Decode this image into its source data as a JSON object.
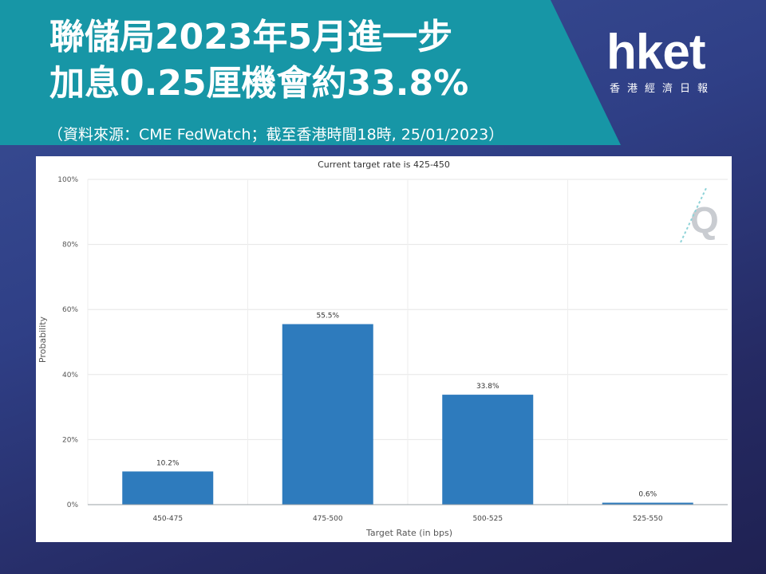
{
  "header": {
    "line1": "聯儲局2023年5月進一步",
    "line2": "加息0.25厘機會約33.8%",
    "source": "（資料來源：CME FedWatch；截至香港時間18時, 25/01/2023）"
  },
  "logo": {
    "main": "hket",
    "sub": "香港經濟日報"
  },
  "colors": {
    "banner": "#1796a6",
    "bar": "#2e7bbd",
    "background": "#2f3f86"
  },
  "chart_data": {
    "type": "bar",
    "title": "Current target rate is 425-450",
    "xlabel": "Target Rate (in bps)",
    "ylabel": "Probability",
    "categories": [
      "450-475",
      "475-500",
      "500-525",
      "525-550"
    ],
    "values": [
      10.2,
      55.5,
      33.8,
      0.6
    ],
    "data_labels": [
      "10.2%",
      "55.5%",
      "33.8%",
      "0.6%"
    ],
    "ylim": [
      0,
      100
    ],
    "yticks": [
      0,
      20,
      40,
      60,
      80,
      100
    ],
    "ytick_labels": [
      "0%",
      "20%",
      "40%",
      "60%",
      "80%",
      "100%"
    ],
    "grid": true,
    "watermark_icon": "q-logo-icon"
  }
}
